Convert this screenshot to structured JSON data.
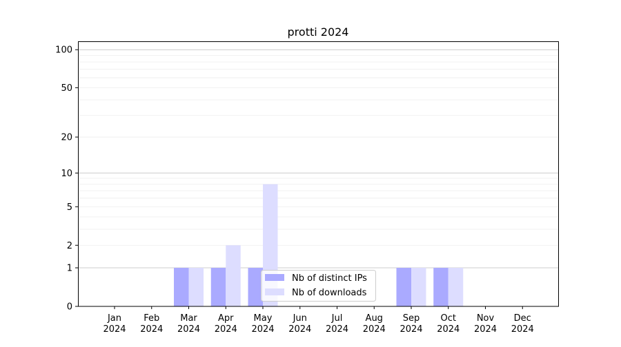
{
  "chart_data": {
    "type": "bar",
    "title": "protti 2024",
    "xlabel": "",
    "ylabel": "",
    "y_scale": "log(1+y)",
    "ylim": [
      0,
      116
    ],
    "yticks": [
      0,
      1,
      2,
      5,
      10,
      20,
      50,
      100
    ],
    "grid": "horizontal, major at 1/10/100 and minor lines",
    "legend_position": "lower-center",
    "categories": [
      "Jan\n2024",
      "Feb\n2024",
      "Mar\n2024",
      "Apr\n2024",
      "May\n2024",
      "Jun\n2024",
      "Jul\n2024",
      "Aug\n2024",
      "Sep\n2024",
      "Oct\n2024",
      "Nov\n2024",
      "Dec\n2024"
    ],
    "series": [
      {
        "name": "Nb of distinct IPs",
        "color": "#aaaaff",
        "values": [
          0,
          0,
          1,
          1,
          1,
          0,
          0,
          0,
          1,
          1,
          0,
          0
        ]
      },
      {
        "name": "Nb of downloads",
        "color": "#ddddff",
        "values": [
          0,
          0,
          1,
          2,
          8,
          0,
          0,
          0,
          1,
          1,
          0,
          0
        ]
      }
    ]
  }
}
